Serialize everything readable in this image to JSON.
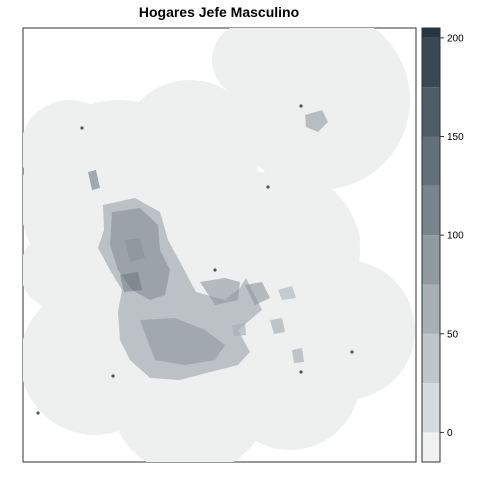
{
  "title": "Hogares Jefe Masculino",
  "colorbar": {
    "min": -15,
    "max": 205,
    "bins": [
      -25,
      0,
      25,
      50,
      75,
      100,
      125,
      150,
      175,
      200,
      225
    ],
    "colors": [
      "#f0f2f2",
      "#d7dbdd",
      "#bfc5c8",
      "#a7b0b5",
      "#8f9aa1",
      "#78858d",
      "#62707a",
      "#4d5c67",
      "#384854",
      "#253543"
    ],
    "ticks": [
      {
        "value": 0,
        "label": "0"
      },
      {
        "value": 50,
        "label": "50"
      },
      {
        "value": 100,
        "label": "100"
      },
      {
        "value": 150,
        "label": "150"
      },
      {
        "value": 200,
        "label": "200"
      }
    ]
  },
  "map": {
    "background_fill": "#eef0f0",
    "cluster_fill": "#a9b1b7",
    "dense_fill": "#8d969d",
    "dark_fill": "#4c5660"
  }
}
